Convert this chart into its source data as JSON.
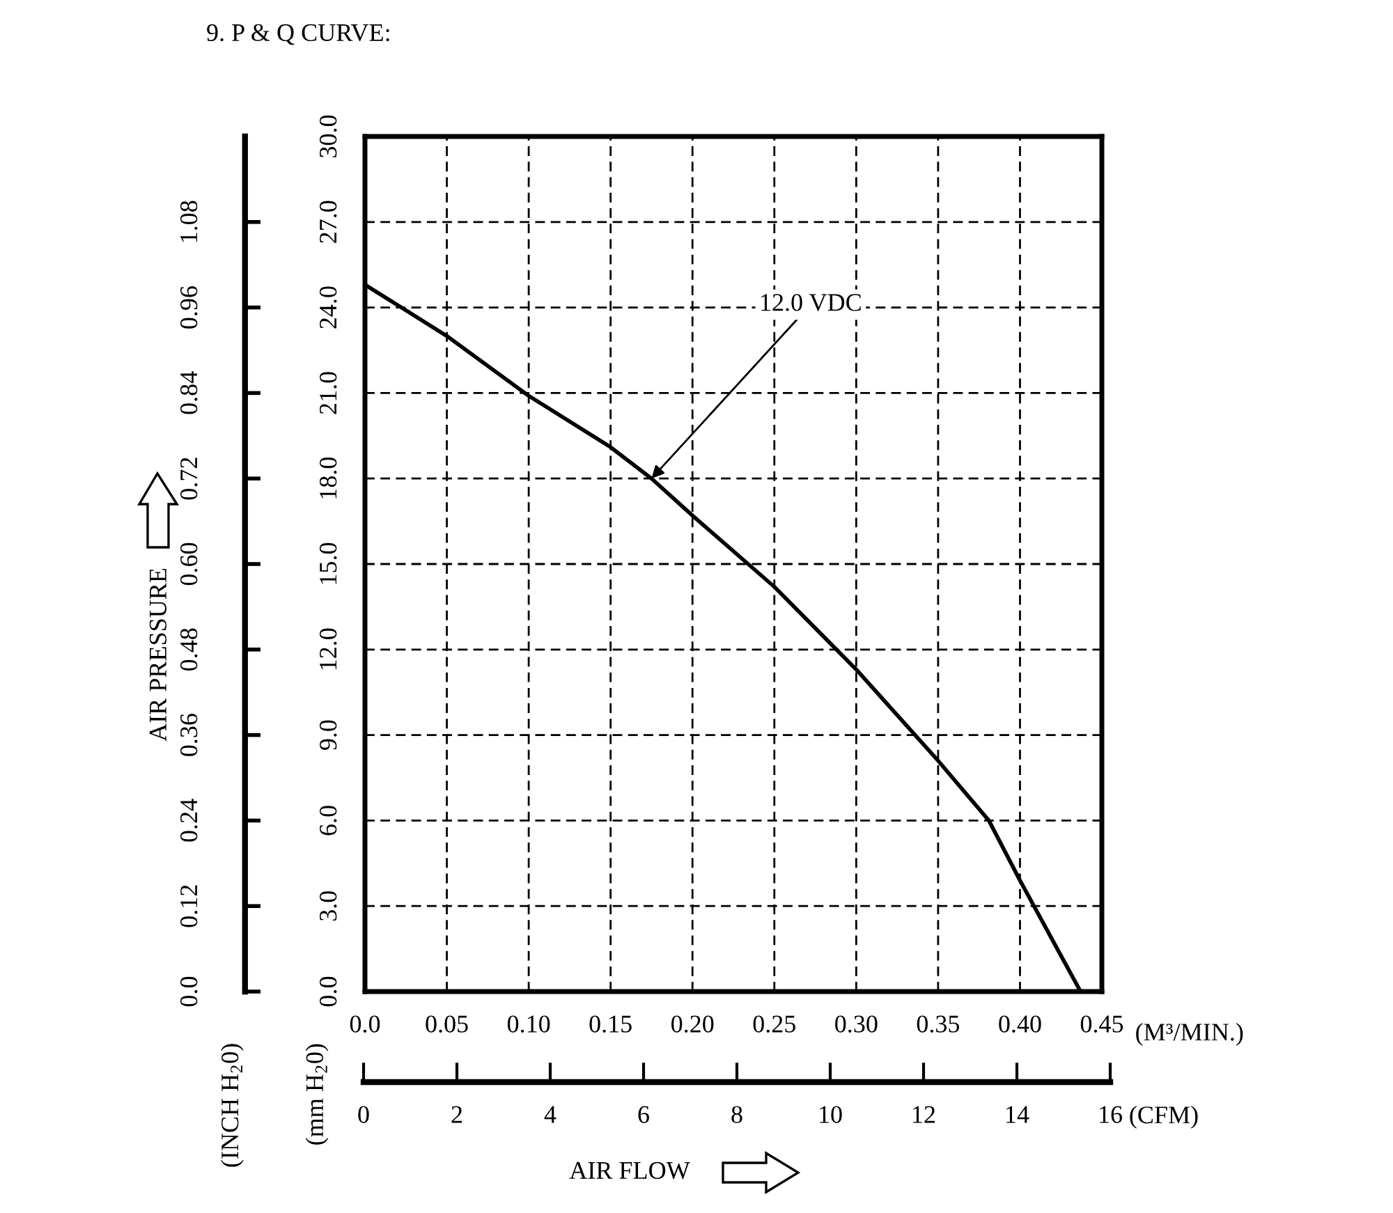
{
  "chart_data": {
    "type": "line",
    "title": "9. P & Q CURVE:",
    "xlabel": "(M³/MIN.)",
    "x2label": "(CFM)",
    "ylabel": "(mm H$_{2}$0)",
    "y2label": "(INCH H$_{2}$0)",
    "x": [
      0,
      0.025,
      0.05,
      0.1,
      0.15,
      0.175,
      0.2,
      0.25,
      0.3,
      0.35,
      0.381,
      0.4,
      0.437
    ],
    "series": [
      {
        "color": "#000000",
        "values": [
          24.8,
          23.9,
          23.0,
          20.9,
          19.1,
          18.0,
          16.7,
          14.2,
          11.3,
          8.1,
          6.0,
          3.9,
          0
        ]
      }
    ],
    "xlim": [
      0,
      0.45
    ],
    "xticks": [
      {
        "value": 0,
        "label": "0.0"
      },
      {
        "value": 0.05,
        "label": "0.05"
      },
      {
        "value": 0.1,
        "label": "0.10"
      },
      {
        "value": 0.15,
        "label": "0.15"
      },
      {
        "value": 0.2,
        "label": "0.20"
      },
      {
        "value": 0.25,
        "label": "0.25"
      },
      {
        "value": 0.3,
        "label": "0.30"
      },
      {
        "value": 0.35,
        "label": "0.35"
      },
      {
        "value": 0.4,
        "label": "0.40"
      },
      {
        "value": 0.45,
        "label": "0.45"
      }
    ],
    "ylim": [
      0,
      30
    ],
    "yticks": [
      {
        "value": 0,
        "label": "0.0"
      },
      {
        "value": 3,
        "label": "3.0"
      },
      {
        "value": 6,
        "label": "6.0"
      },
      {
        "value": 9,
        "label": "9.0"
      },
      {
        "value": 12,
        "label": "12.0"
      },
      {
        "value": 15,
        "label": "15.0"
      },
      {
        "value": 18,
        "label": "18.0"
      },
      {
        "value": 21,
        "label": "21.0"
      },
      {
        "value": 24,
        "label": "24.0"
      },
      {
        "value": 27,
        "label": "27.0"
      },
      {
        "value": 30,
        "label": "30.0"
      }
    ],
    "y2lim": [
      0,
      1.2
    ],
    "y2ticks": [
      {
        "value": 0,
        "label": "0.0"
      },
      0.12,
      0.24,
      0.36,
      0.48,
      {
        "value": 0.6,
        "label": "0.60"
      },
      0.72,
      0.84,
      0.96,
      1.08
    ],
    "x2lim": [
      0,
      16
    ],
    "x2ticks": [
      0,
      2,
      4,
      6,
      8,
      10,
      12,
      14,
      16
    ],
    "grid": true,
    "annotations": [
      {
        "text": "12.0 VDC",
        "x": 0.175,
        "y": 18.0
      },
      "AIR PRESSURE",
      "AIR FLOW"
    ]
  }
}
